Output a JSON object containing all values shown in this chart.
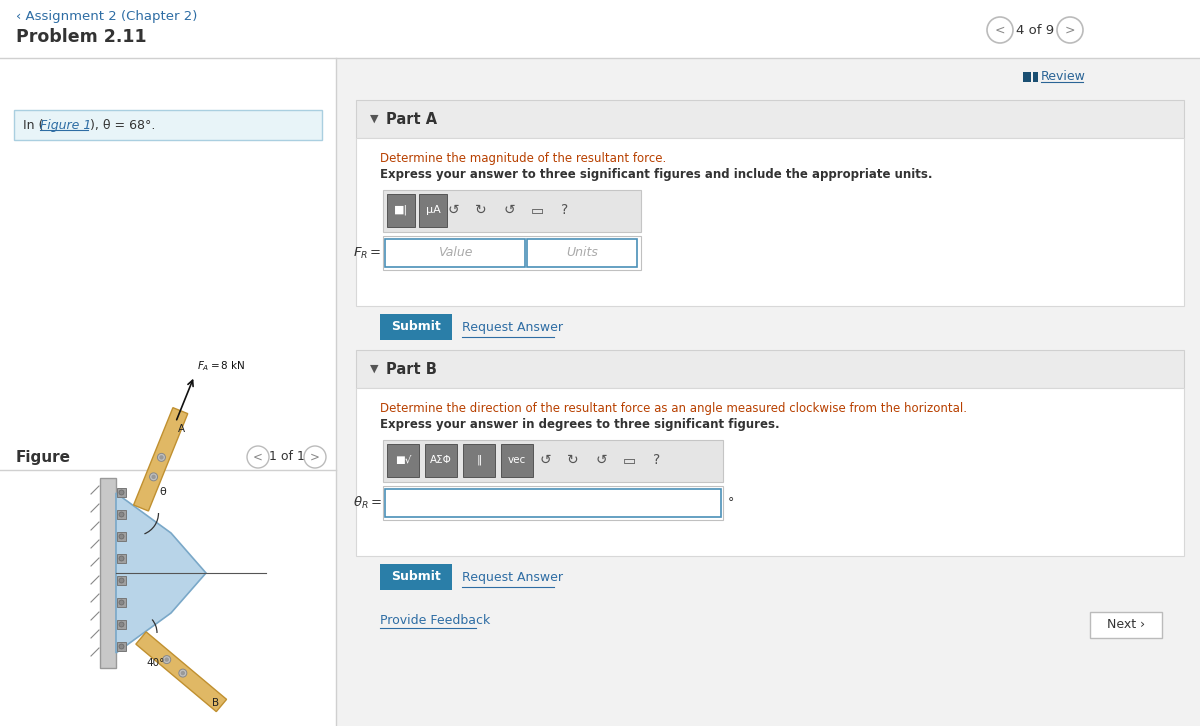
{
  "title_back": "‹ Assignment 2 (Chapter 2)",
  "problem": "Problem 2.11",
  "page_nav": "4 of 9",
  "condition_pre": "In (",
  "condition_link": "Figure 1",
  "condition_post": "), θ = 68°.",
  "figure_label": "Figure",
  "figure_nav": "1 of 1",
  "part_a_label": "Part A",
  "part_a_question": "Determine the magnitude of the resultant force.",
  "part_a_instruction": "Express your answer to three significant figures and include the appropriate units.",
  "part_a_var": "FR =",
  "part_b_label": "Part B",
  "part_b_question": "Determine the direction of the resultant force as an angle measured clockwise from the horizontal.",
  "part_b_instruction": "Express your answer in degrees to three significant figures.",
  "part_b_var": "θR =",
  "review_label": "Review",
  "submit_label": "Submit",
  "request_answer": "Request Answer",
  "provide_feedback": "Provide Feedback",
  "next_label": "Next ›",
  "bg_white": "#ffffff",
  "bg_light": "#f2f2f2",
  "bg_info": "#e8f4f8",
  "border_color": "#cccccc",
  "teal": "#c8420a",
  "blue_link": "#2e6da4",
  "dark_text": "#333333",
  "medium_text": "#555555",
  "light_text": "#999999",
  "submit_bg": "#2a7ea8",
  "submit_text": "#ffffff",
  "part_header_bg": "#ebebeb",
  "divider_color": "#dddddd",
  "review_blue": "#2a6496",
  "info_border": "#aacfe0"
}
